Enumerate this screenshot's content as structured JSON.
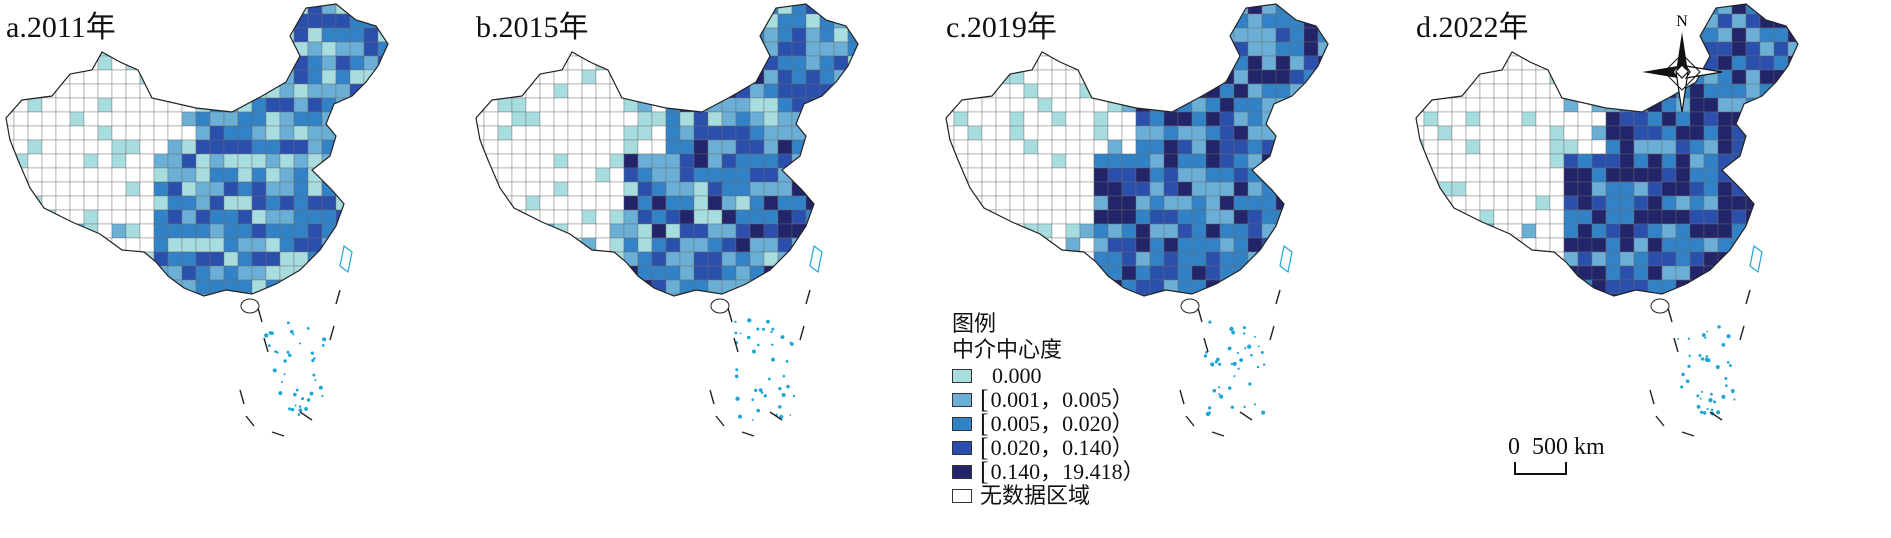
{
  "panels": [
    {
      "id": "a",
      "title": "a.2011年"
    },
    {
      "id": "b",
      "title": "b.2015年"
    },
    {
      "id": "c",
      "title": "c.2019年"
    },
    {
      "id": "d",
      "title": "d.2022年"
    }
  ],
  "legend": {
    "title": "图例",
    "subtitle": "中介中心度",
    "classes": [
      {
        "label": "0.000",
        "color": "#a8dde0",
        "bracket": ""
      },
      {
        "label": "0.001，0.005）",
        "color": "#6baed6",
        "bracket": "["
      },
      {
        "label": "0.005，0.020）",
        "color": "#3182c6",
        "bracket": "["
      },
      {
        "label": "0.020，0.140）",
        "color": "#2a4fad",
        "bracket": "["
      },
      {
        "label": "0.140，19.418）",
        "color": "#23256b",
        "bracket": "["
      },
      {
        "label": "无数据区域",
        "color": "#ffffff",
        "bracket": ""
      }
    ]
  },
  "north_arrow": {
    "label": "N"
  },
  "scale_bar": {
    "label": "0  500 km"
  }
}
